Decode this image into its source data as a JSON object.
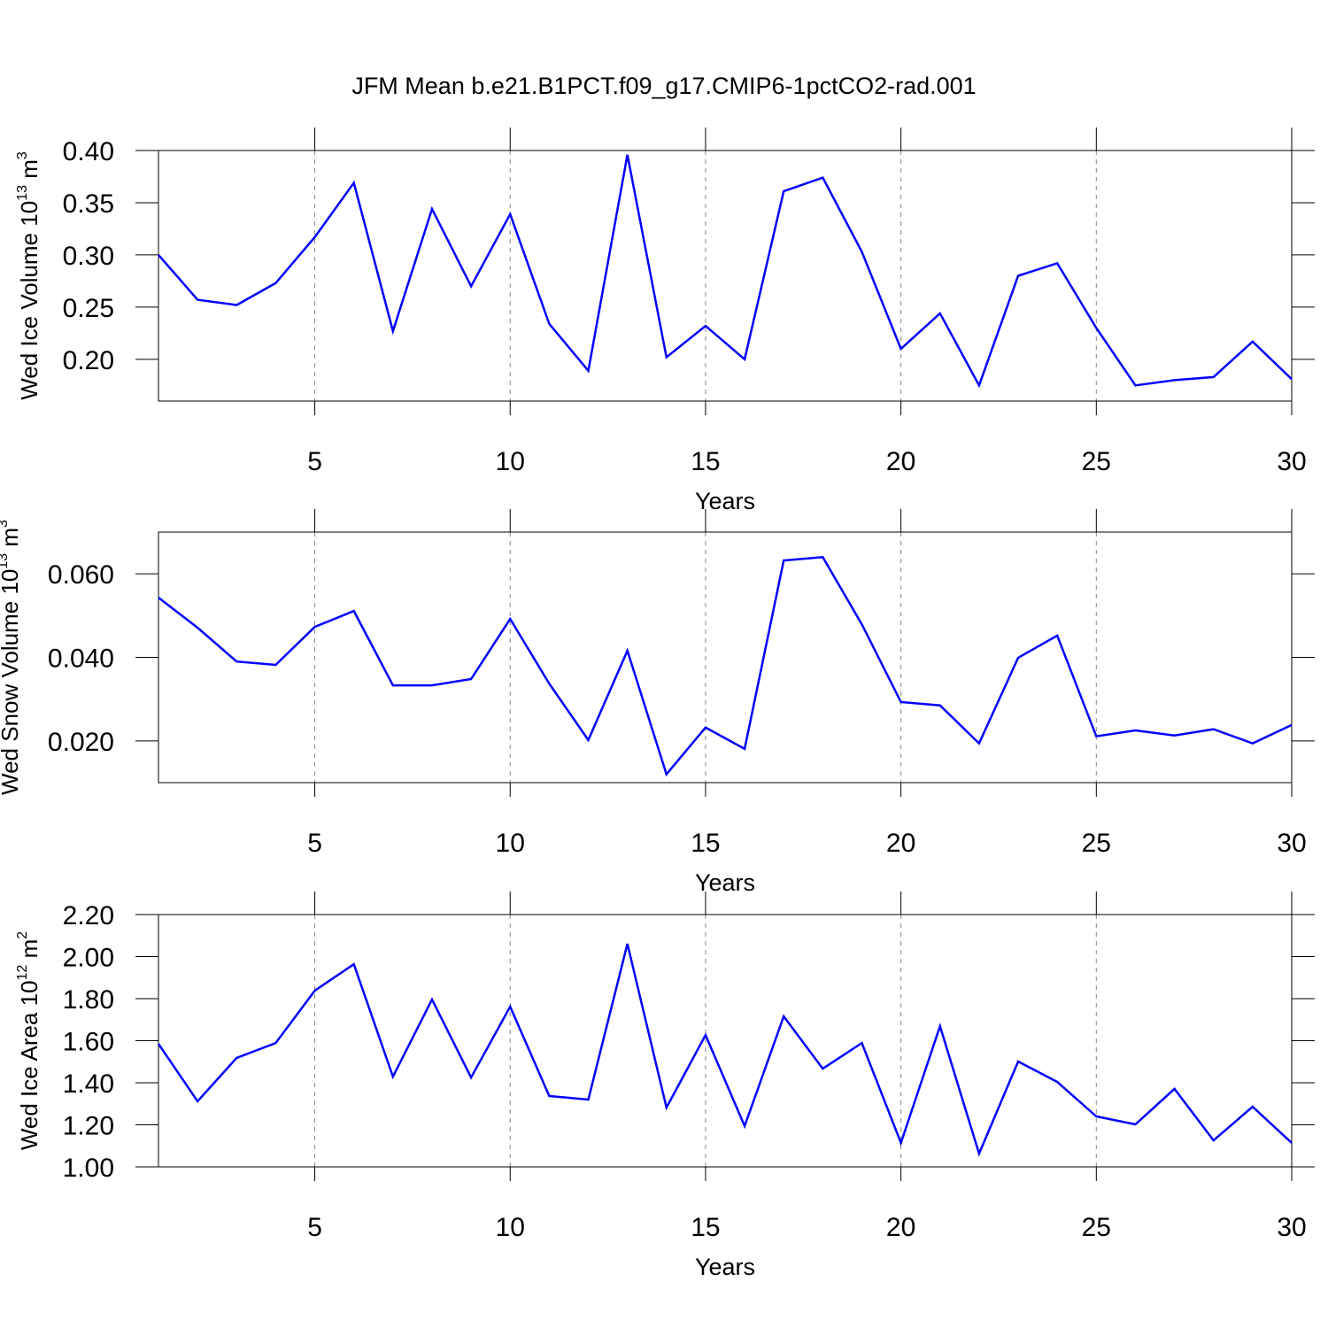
{
  "title": "JFM Mean b.e21.B1PCT.f09_g17.CMIP6-1pctCO2-rad.001",
  "chart_data": [
    {
      "type": "line",
      "ylabel": [
        "Wed Ice Volume 10",
        "13",
        " m",
        "3"
      ],
      "xlabel": "Years",
      "color": "#0000ff",
      "grid": true,
      "x": [
        1,
        2,
        3,
        4,
        5,
        6,
        7,
        8,
        9,
        10,
        11,
        12,
        13,
        14,
        15,
        16,
        17,
        18,
        19,
        20,
        21,
        22,
        23,
        24,
        25,
        26,
        27,
        28,
        29,
        30
      ],
      "values": [
        0.3,
        0.257,
        0.252,
        0.273,
        0.317,
        0.369,
        0.227,
        0.344,
        0.27,
        0.339,
        0.234,
        0.189,
        0.396,
        0.202,
        0.232,
        0.2,
        0.361,
        0.374,
        0.303,
        0.21,
        0.244,
        0.175,
        0.28,
        0.292,
        0.23,
        0.175,
        0.18,
        0.183,
        0.217,
        0.181
      ],
      "xlim": [
        1,
        30
      ],
      "xticks": [
        5,
        10,
        15,
        20,
        25,
        30
      ],
      "ylim": [
        0.16,
        0.4
      ],
      "yticks": [
        {
          "value": 0.2,
          "label": "0.20"
        },
        {
          "value": 0.25,
          "label": "0.25"
        },
        {
          "value": 0.3,
          "label": "0.30"
        },
        {
          "value": 0.35,
          "label": "0.35"
        },
        {
          "value": 0.4,
          "label": "0.40"
        }
      ]
    },
    {
      "type": "line",
      "ylabel": [
        "Wed Snow Volume 10",
        "13",
        " m",
        "3"
      ],
      "xlabel": "Years",
      "color": "#0000ff",
      "grid": true,
      "x": [
        1,
        2,
        3,
        4,
        5,
        6,
        7,
        8,
        9,
        10,
        11,
        12,
        13,
        14,
        15,
        16,
        17,
        18,
        19,
        20,
        21,
        22,
        23,
        24,
        25,
        26,
        27,
        28,
        29,
        30
      ],
      "values": [
        0.0543,
        0.0471,
        0.039,
        0.0382,
        0.0473,
        0.0511,
        0.0333,
        0.0333,
        0.0348,
        0.0492,
        0.0337,
        0.0202,
        0.0416,
        0.012,
        0.0232,
        0.0181,
        0.0632,
        0.064,
        0.0479,
        0.0293,
        0.0285,
        0.0194,
        0.0399,
        0.0452,
        0.0211,
        0.0225,
        0.0213,
        0.0228,
        0.0194,
        0.0238
      ],
      "xlim": [
        1,
        30
      ],
      "xticks": [
        5,
        10,
        15,
        20,
        25,
        30
      ],
      "ylim": [
        0.01,
        0.07
      ],
      "yticks": [
        {
          "value": 0.02,
          "label": "0.020"
        },
        {
          "value": 0.04,
          "label": "0.040"
        },
        {
          "value": 0.06,
          "label": "0.060"
        }
      ]
    },
    {
      "type": "line",
      "ylabel": [
        "Wed Ice Area 10",
        "12",
        " m",
        "2"
      ],
      "xlabel": "Years",
      "color": "#0000ff",
      "grid": true,
      "x": [
        1,
        2,
        3,
        4,
        5,
        6,
        7,
        8,
        9,
        10,
        11,
        12,
        13,
        14,
        15,
        16,
        17,
        18,
        19,
        20,
        21,
        22,
        23,
        24,
        25,
        26,
        27,
        28,
        29,
        30
      ],
      "values": [
        1.585,
        1.312,
        1.518,
        1.589,
        1.838,
        1.964,
        1.429,
        1.796,
        1.425,
        1.762,
        1.337,
        1.32,
        2.061,
        1.282,
        1.627,
        1.194,
        1.716,
        1.467,
        1.589,
        1.114,
        1.669,
        1.063,
        1.501,
        1.404,
        1.24,
        1.202,
        1.371,
        1.126,
        1.286,
        1.114
      ],
      "xlim": [
        1,
        30
      ],
      "xticks": [
        5,
        10,
        15,
        20,
        25,
        30
      ],
      "ylim": [
        1.0,
        2.2
      ],
      "yticks": [
        {
          "value": 1.0,
          "label": "1.00"
        },
        {
          "value": 1.2,
          "label": "1.20"
        },
        {
          "value": 1.4,
          "label": "1.40"
        },
        {
          "value": 1.6,
          "label": "1.60"
        },
        {
          "value": 1.8,
          "label": "1.80"
        },
        {
          "value": 2.0,
          "label": "2.00"
        },
        {
          "value": 2.2,
          "label": "2.20"
        }
      ]
    }
  ]
}
